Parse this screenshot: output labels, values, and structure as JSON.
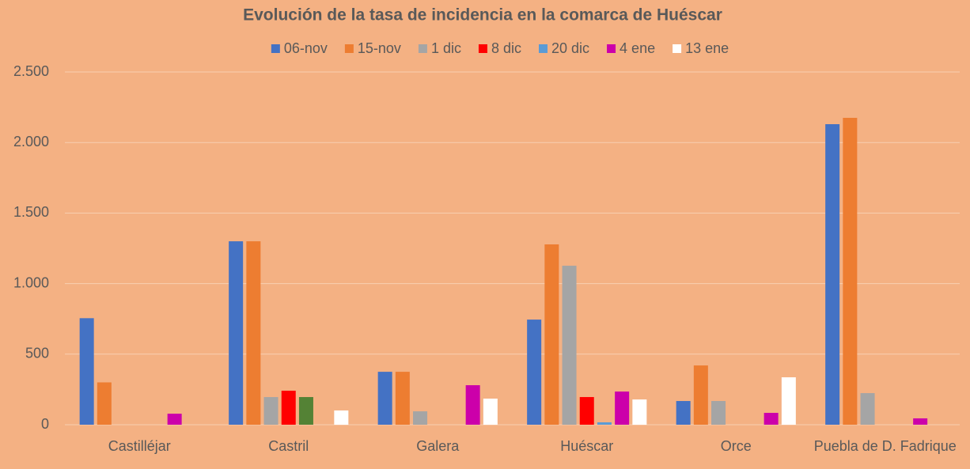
{
  "chart_data": {
    "type": "bar",
    "title": "Evolución de la tasa de incidencia en la comarca de Huéscar",
    "categories": [
      "Castilléjar",
      "Castril",
      "Galera",
      "Huéscar",
      "Orce",
      "Puebla de D. Fadrique"
    ],
    "series": [
      {
        "name": "06-nov",
        "color": "#4472C4",
        "values": [
          755,
          1300,
          375,
          745,
          168,
          2130
        ]
      },
      {
        "name": "15-nov",
        "color": "#ED7D31",
        "values": [
          300,
          1300,
          375,
          1278,
          420,
          2175
        ]
      },
      {
        "name": "1 dic",
        "color": "#A5A5A5",
        "values": [
          0,
          196,
          95,
          1127,
          168,
          224
        ]
      },
      {
        "name": "8 dic",
        "color": "#FF0000",
        "values": [
          0,
          241,
          0,
          196,
          0,
          0
        ]
      },
      {
        "name": "20 dic",
        "color": "#5B9BD5",
        "point_colors": {
          "1": "#548235"
        },
        "values": [
          0,
          196,
          0,
          17,
          0,
          0
        ]
      },
      {
        "name": "4 ene",
        "color": "#CC00AA",
        "values": [
          78,
          0,
          280,
          235,
          84,
          45
        ]
      },
      {
        "name": "13 ene",
        "color": "#FFFFFF",
        "values": [
          0,
          101,
          185,
          179,
          336,
          0
        ]
      }
    ],
    "ylim": [
      0,
      2500
    ],
    "yticks": [
      0,
      500,
      {
        "value": 1000,
        "label": "1.000"
      },
      {
        "value": 1500,
        "label": "1.500"
      },
      {
        "value": 2000,
        "label": "2.000"
      },
      {
        "value": 2500,
        "label": "2.500"
      }
    ],
    "grid": true,
    "legend": "top"
  }
}
